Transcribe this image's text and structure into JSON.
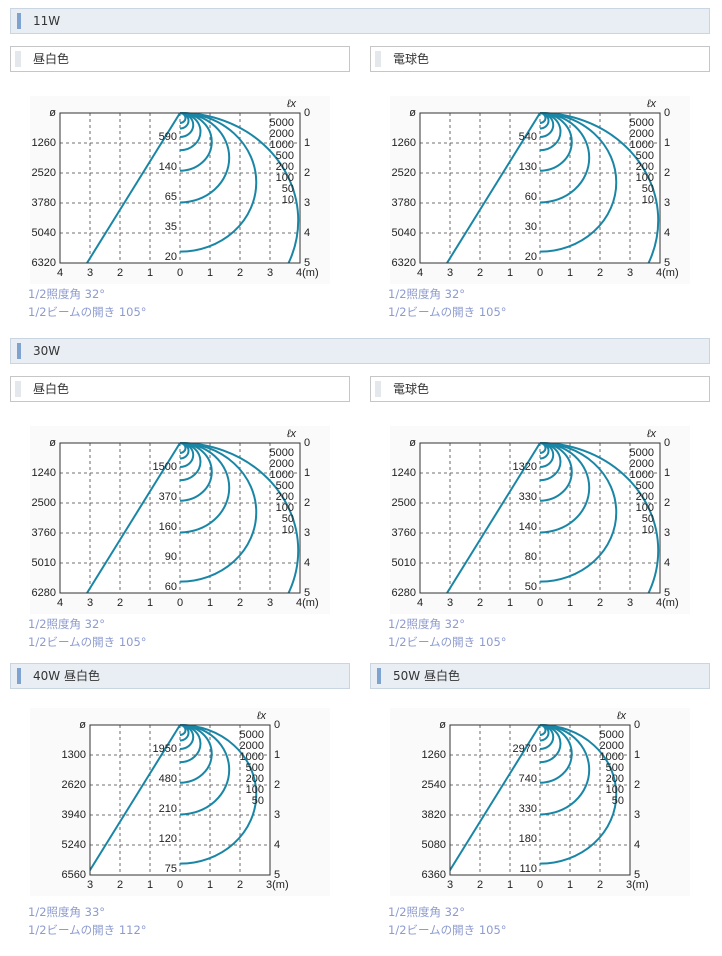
{
  "sections": [
    {
      "title": "11W",
      "panels": [
        {
          "title": "昼白色",
          "diagram": {
            "unit": "ℓx",
            "diameters": [
              "ø",
              1260,
              2520,
              3780,
              5040,
              6320
            ],
            "depths": [
              0,
              1,
              2,
              3,
              4,
              5
            ],
            "lux": [
              5000,
              2000,
              1000,
              500,
              200,
              100,
              50,
              10
            ],
            "center_lux": [
              590,
              140,
              65,
              35,
              20
            ],
            "distances": [
              4,
              3,
              2,
              1,
              0,
              1,
              2,
              3,
              "4(m)"
            ]
          },
          "notes": [
            "1/2照度角 32°",
            "1/2ビームの開き 105°"
          ]
        },
        {
          "title": "電球色",
          "diagram": {
            "unit": "ℓx",
            "diameters": [
              "ø",
              1260,
              2520,
              3780,
              5040,
              6320
            ],
            "depths": [
              0,
              1,
              2,
              3,
              4,
              5
            ],
            "lux": [
              5000,
              2000,
              1000,
              500,
              200,
              100,
              50,
              10
            ],
            "center_lux": [
              540,
              130,
              60,
              30,
              20
            ],
            "distances": [
              4,
              3,
              2,
              1,
              0,
              1,
              2,
              3,
              "4(m)"
            ]
          },
          "notes": [
            "1/2照度角 32°",
            "1/2ビームの開き 105°"
          ]
        }
      ]
    },
    {
      "title": "30W",
      "panels": [
        {
          "title": "昼白色",
          "diagram": {
            "unit": "ℓx",
            "diameters": [
              "ø",
              1240,
              2500,
              3760,
              5010,
              6280
            ],
            "depths": [
              0,
              1,
              2,
              3,
              4,
              5
            ],
            "lux": [
              5000,
              2000,
              1000,
              500,
              200,
              100,
              50,
              10
            ],
            "center_lux": [
              1500,
              370,
              160,
              90,
              60
            ],
            "distances": [
              4,
              3,
              2,
              1,
              0,
              1,
              2,
              3,
              "4(m)"
            ]
          },
          "notes": [
            "1/2照度角 32°",
            "1/2ビームの開き 105°"
          ]
        },
        {
          "title": "電球色",
          "diagram": {
            "unit": "ℓx",
            "diameters": [
              "ø",
              1240,
              2500,
              3760,
              5010,
              6280
            ],
            "depths": [
              0,
              1,
              2,
              3,
              4,
              5
            ],
            "lux": [
              5000,
              2000,
              1000,
              500,
              200,
              100,
              50,
              10
            ],
            "center_lux": [
              1320,
              330,
              140,
              80,
              50
            ],
            "distances": [
              4,
              3,
              2,
              1,
              0,
              1,
              2,
              3,
              "4(m)"
            ]
          },
          "notes": [
            "1/2照度角 32°",
            "1/2ビームの開き 105°"
          ]
        }
      ]
    }
  ],
  "wide_panels": [
    {
      "title": "40W 昼白色",
      "diagram": {
        "unit": "ℓx",
        "diameters": [
          "ø",
          1300,
          2620,
          3940,
          5240,
          6560
        ],
        "depths": [
          0,
          1,
          2,
          3,
          4,
          5
        ],
        "lux": [
          5000,
          2000,
          1000,
          500,
          200,
          100,
          50
        ],
        "center_lux": [
          1950,
          480,
          210,
          120,
          75
        ],
        "distances": [
          3,
          2,
          1,
          0,
          1,
          2,
          "3(m)"
        ]
      },
      "notes": [
        "1/2照度角 33°",
        "1/2ビームの開き 112°"
      ]
    },
    {
      "title": "50W 昼白色",
      "diagram": {
        "unit": "ℓx",
        "diameters": [
          "ø",
          1260,
          2540,
          3820,
          5080,
          6360
        ],
        "depths": [
          0,
          1,
          2,
          3,
          4,
          5
        ],
        "lux": [
          5000,
          2000,
          1000,
          500,
          200,
          100,
          50
        ],
        "center_lux": [
          2970,
          740,
          330,
          180,
          110
        ],
        "distances": [
          3,
          2,
          1,
          0,
          1,
          2,
          "3(m)"
        ]
      },
      "notes": [
        "1/2照度角 32°",
        "1/2ビームの開き 105°"
      ]
    }
  ]
}
